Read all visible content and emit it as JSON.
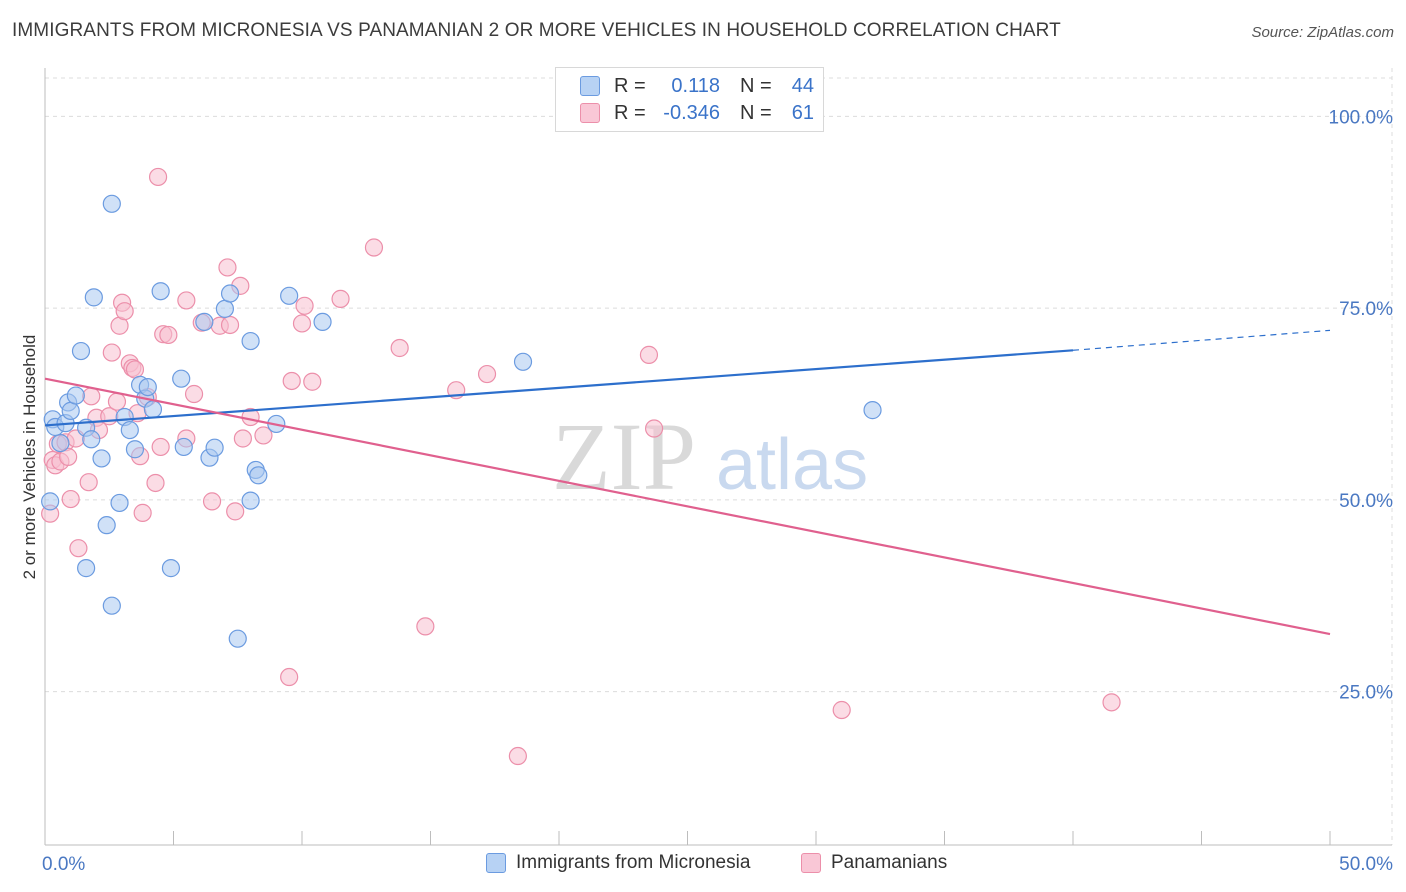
{
  "title": "IMMIGRANTS FROM MICRONESIA VS PANAMANIAN 2 OR MORE VEHICLES IN HOUSEHOLD CORRELATION CHART",
  "source": "Source: ZipAtlas.com",
  "watermark": {
    "zip": "ZIP",
    "atlas": "atlas"
  },
  "legend": {
    "rows": [
      {
        "r_label": "R =",
        "r_value": "0.118",
        "n_label": "N =",
        "n_value": "44"
      },
      {
        "r_label": "R =",
        "r_value": "-0.346",
        "n_label": "N =",
        "n_value": "61"
      }
    ]
  },
  "bottom_legend": [
    "Immigrants from Micronesia",
    "Panamanians"
  ],
  "colors": {
    "blue_fill": "#a9c8f0",
    "blue_stroke": "#6b9be0",
    "blue_line": "#2d6fcc",
    "pink_fill": "#f7bfd0",
    "pink_stroke": "#ec8faa",
    "pink_line": "#e0608e",
    "tick_text": "#4a78c2"
  },
  "chart_data": {
    "type": "scatter",
    "title": "IMMIGRANTS FROM MICRONESIA VS PANAMANIAN 2 OR MORE VEHICLES IN HOUSEHOLD CORRELATION CHART",
    "xlabel": "",
    "ylabel": "2 or more Vehicles in Household",
    "xlim": [
      0,
      50
    ],
    "ylim": [
      5,
      105
    ],
    "x_tick_labels": [
      "0.0%",
      "50.0%"
    ],
    "y_ticks": [
      25,
      50,
      75,
      100
    ],
    "y_tick_labels": [
      "25.0%",
      "50.0%",
      "75.0%",
      "100.0%"
    ],
    "grid": true,
    "series": [
      {
        "name": "Immigrants from Micronesia",
        "color": "blue",
        "r": 0.118,
        "n": 44,
        "trend": {
          "x": [
            0,
            40
          ],
          "y": [
            59.7,
            69.5
          ],
          "dashed_to": [
            50,
            72.1
          ]
        },
        "points": [
          [
            0.2,
            49.8
          ],
          [
            0.3,
            60.5
          ],
          [
            0.4,
            59.5
          ],
          [
            0.6,
            57.4
          ],
          [
            0.8,
            60.0
          ],
          [
            0.9,
            62.7
          ],
          [
            1.0,
            61.6
          ],
          [
            1.2,
            63.6
          ],
          [
            1.4,
            69.4
          ],
          [
            1.6,
            41.1
          ],
          [
            1.6,
            59.4
          ],
          [
            1.8,
            57.9
          ],
          [
            1.9,
            76.4
          ],
          [
            2.2,
            55.4
          ],
          [
            2.4,
            46.7
          ],
          [
            2.6,
            88.6
          ],
          [
            2.6,
            36.2
          ],
          [
            2.9,
            49.6
          ],
          [
            3.1,
            60.8
          ],
          [
            3.3,
            59.1
          ],
          [
            3.5,
            56.6
          ],
          [
            3.7,
            65.0
          ],
          [
            3.9,
            63.2
          ],
          [
            4.0,
            64.7
          ],
          [
            4.2,
            61.8
          ],
          [
            4.5,
            77.2
          ],
          [
            4.9,
            41.1
          ],
          [
            5.3,
            65.8
          ],
          [
            5.4,
            56.9
          ],
          [
            6.2,
            73.2
          ],
          [
            6.4,
            55.5
          ],
          [
            6.6,
            56.8
          ],
          [
            7.0,
            74.9
          ],
          [
            7.2,
            76.9
          ],
          [
            7.5,
            31.9
          ],
          [
            8.0,
            70.7
          ],
          [
            8.0,
            49.9
          ],
          [
            8.2,
            53.9
          ],
          [
            8.3,
            53.2
          ],
          [
            9.0,
            59.9
          ],
          [
            9.5,
            76.6
          ],
          [
            10.8,
            73.2
          ],
          [
            18.6,
            68.0
          ],
          [
            32.2,
            61.7
          ]
        ]
      },
      {
        "name": "Panamanians",
        "color": "pink",
        "r": -0.346,
        "n": 61,
        "trend": {
          "x": [
            0,
            50
          ],
          "y": [
            65.8,
            32.5
          ]
        },
        "points": [
          [
            0.2,
            48.2
          ],
          [
            0.3,
            55.2
          ],
          [
            0.4,
            54.5
          ],
          [
            0.5,
            57.3
          ],
          [
            0.6,
            55.0
          ],
          [
            0.8,
            57.5
          ],
          [
            0.9,
            55.6
          ],
          [
            1.0,
            50.1
          ],
          [
            1.2,
            58.0
          ],
          [
            1.3,
            43.7
          ],
          [
            1.7,
            52.3
          ],
          [
            1.8,
            63.5
          ],
          [
            2.0,
            60.7
          ],
          [
            2.1,
            59.1
          ],
          [
            2.5,
            60.9
          ],
          [
            2.6,
            69.2
          ],
          [
            2.8,
            62.8
          ],
          [
            2.9,
            72.7
          ],
          [
            3.0,
            75.7
          ],
          [
            3.1,
            74.6
          ],
          [
            3.3,
            67.8
          ],
          [
            3.4,
            67.2
          ],
          [
            3.5,
            67.0
          ],
          [
            3.6,
            61.3
          ],
          [
            3.7,
            55.7
          ],
          [
            3.8,
            48.3
          ],
          [
            4.0,
            63.4
          ],
          [
            4.3,
            52.2
          ],
          [
            4.4,
            92.1
          ],
          [
            4.5,
            56.9
          ],
          [
            4.6,
            71.6
          ],
          [
            4.8,
            71.5
          ],
          [
            5.5,
            76.0
          ],
          [
            5.5,
            58.0
          ],
          [
            5.8,
            63.8
          ],
          [
            6.1,
            73.1
          ],
          [
            6.5,
            49.8
          ],
          [
            6.8,
            72.7
          ],
          [
            7.1,
            80.3
          ],
          [
            7.2,
            72.8
          ],
          [
            7.4,
            48.5
          ],
          [
            7.6,
            77.9
          ],
          [
            7.7,
            58.0
          ],
          [
            8.0,
            60.8
          ],
          [
            8.5,
            58.4
          ],
          [
            9.5,
            26.9
          ],
          [
            9.6,
            65.5
          ],
          [
            10.0,
            73.0
          ],
          [
            10.1,
            75.3
          ],
          [
            10.4,
            65.4
          ],
          [
            11.5,
            76.2
          ],
          [
            12.8,
            82.9
          ],
          [
            13.8,
            69.8
          ],
          [
            14.8,
            33.5
          ],
          [
            16.0,
            64.3
          ],
          [
            17.2,
            66.4
          ],
          [
            18.4,
            16.6
          ],
          [
            23.5,
            68.9
          ],
          [
            23.7,
            59.3
          ],
          [
            31.0,
            22.6
          ],
          [
            41.5,
            23.6
          ]
        ]
      }
    ]
  }
}
